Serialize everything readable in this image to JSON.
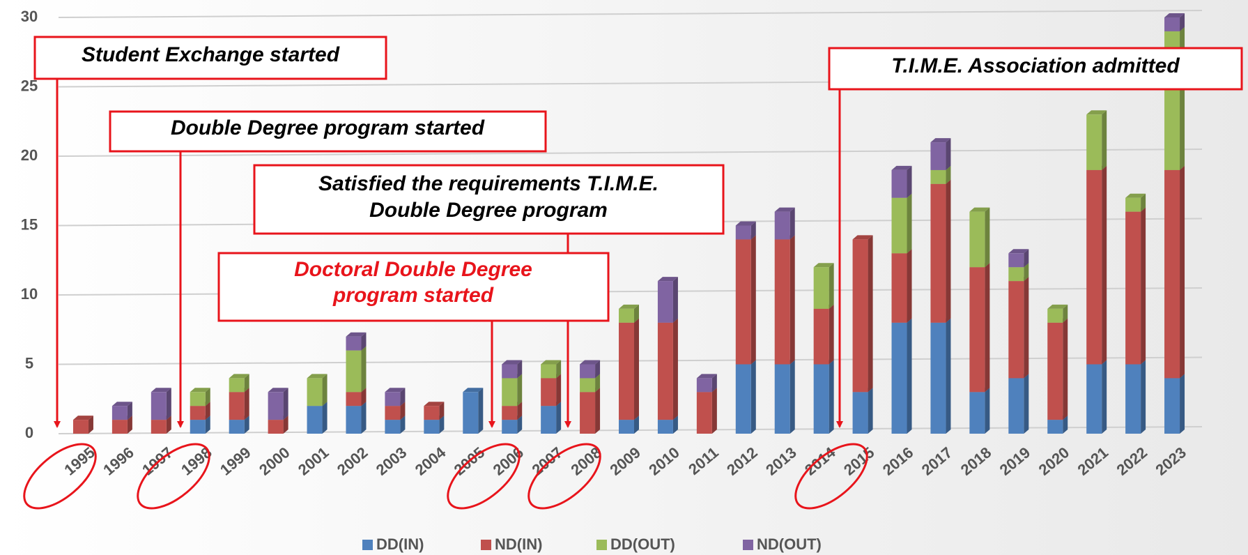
{
  "chart_data": {
    "type": "stacked-bar",
    "categories": [
      "1995",
      "1996",
      "1997",
      "1998",
      "1999",
      "2000",
      "2001",
      "2002",
      "2003",
      "2004",
      "2005",
      "2006",
      "2007",
      "2008",
      "2009",
      "2010",
      "2011",
      "2012",
      "2013",
      "2014",
      "2015",
      "2016",
      "2017",
      "2018",
      "2019",
      "2020",
      "2021",
      "2022",
      "2023"
    ],
    "series": [
      {
        "name": "DD(IN)",
        "color": "#4f81bd",
        "values": [
          0,
          0,
          0,
          1,
          1,
          0,
          2,
          2,
          1,
          1,
          3,
          1,
          2,
          0,
          1,
          1,
          0,
          5,
          5,
          5,
          3,
          8,
          8,
          3,
          4,
          1,
          5,
          5,
          4
        ]
      },
      {
        "name": "ND(IN)",
        "color": "#c0504d",
        "values": [
          1,
          1,
          1,
          1,
          2,
          1,
          0,
          1,
          1,
          1,
          0,
          1,
          2,
          3,
          7,
          7,
          3,
          9,
          9,
          4,
          11,
          5,
          10,
          9,
          7,
          7,
          14,
          11,
          15
        ]
      },
      {
        "name": "DD(OUT)",
        "color": "#9bbb59",
        "values": [
          0,
          0,
          0,
          1,
          1,
          0,
          2,
          3,
          0,
          0,
          0,
          2,
          1,
          1,
          1,
          0,
          0,
          0,
          0,
          3,
          0,
          4,
          1,
          4,
          1,
          1,
          4,
          1,
          10
        ]
      },
      {
        "name": "ND(OUT)",
        "color": "#8064a2",
        "values": [
          0,
          1,
          2,
          0,
          0,
          2,
          0,
          1,
          1,
          0,
          0,
          1,
          0,
          1,
          0,
          3,
          1,
          1,
          2,
          0,
          0,
          2,
          2,
          0,
          1,
          0,
          0,
          0,
          1
        ]
      }
    ],
    "ylim": [
      0,
      30
    ],
    "yticks": [
      0,
      5,
      10,
      15,
      20,
      25,
      30
    ],
    "grid": true,
    "legend": "bottom",
    "annotations": [
      [
        "Student Exchange started"
      ],
      [
        "Double Degree program started"
      ],
      [
        "Satisfied the requirements T.I.M.E.",
        "Double Degree program"
      ],
      [
        "Doctoral Double Degree",
        "program started"
      ],
      [
        "T.I.M.E. Association admitted"
      ]
    ]
  }
}
